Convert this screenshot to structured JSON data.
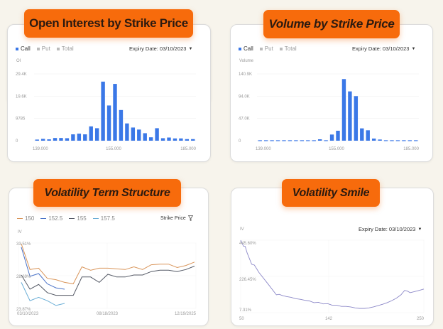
{
  "colors": {
    "background": "#f7f4ec",
    "pill": "#f76b0c",
    "bar": "#3b78e7",
    "series_150": "#d9955a",
    "series_152_5": "#4a73c8",
    "series_155": "#555a66",
    "series_157_5": "#6aaed6",
    "smile_line": "#8c88c8"
  },
  "panels": {
    "oi": {
      "title": "Open Interest by Strike Price",
      "legend": [
        "Call",
        "Put",
        "Total"
      ],
      "expiry_label": "Expiry Date: 03/10/2023",
      "y_axis_title": "OI"
    },
    "volume": {
      "title": "Volume by Strike Price",
      "legend": [
        "Call",
        "Put",
        "Total"
      ],
      "expiry_label": "Expiry Date: 03/10/2023",
      "y_axis_title": "Volume"
    },
    "term": {
      "title": "Volatility Term Structure",
      "legend": [
        "150",
        "152.5",
        "155",
        "157.5"
      ],
      "filter_label": "Strike Price",
      "y_axis_title": "IV"
    },
    "smile": {
      "title": "Volatility Smile",
      "expiry_label": "Expiry Date: 03/10/2023",
      "y_axis_title": "IV"
    }
  },
  "chart_data": [
    {
      "type": "bar",
      "title": "Open Interest by Strike Price",
      "ylabel": "OI",
      "x_ticks": [
        "139.000",
        "155.000",
        "185.000"
      ],
      "y_ticks": [
        "0",
        "9785",
        "19.6K",
        "29.4K"
      ],
      "ylim": [
        0,
        29400
      ],
      "series": [
        {
          "name": "Call",
          "values": [
            500,
            800,
            600,
            1200,
            1200,
            1100,
            2800,
            3100,
            2800,
            6300,
            5500,
            26000,
            15500,
            25000,
            13500,
            7600,
            5800,
            4900,
            3300,
            1500,
            5500,
            1100,
            1400,
            1000,
            1000,
            700,
            700
          ]
        }
      ]
    },
    {
      "type": "bar",
      "title": "Volume by Strike Price",
      "ylabel": "Volume",
      "x_ticks": [
        "139.000",
        "155.000",
        "185.000"
      ],
      "y_ticks": [
        "0",
        "47.0K",
        "94.0K",
        "140.9K"
      ],
      "ylim": [
        0,
        140900
      ],
      "series": [
        {
          "name": "Call",
          "values": [
            1000,
            1000,
            1000,
            1000,
            1000,
            1000,
            1000,
            1000,
            1000,
            1000,
            3000,
            1000,
            13000,
            21000,
            130000,
            104000,
            94000,
            26000,
            22000,
            4500,
            2500,
            1000,
            1000,
            1000,
            1000,
            1000,
            1000
          ]
        }
      ]
    },
    {
      "type": "line",
      "title": "Volatility Term Structure",
      "ylabel": "IV",
      "x_ticks": [
        "03/10/2023",
        "08/18/2023",
        "12/19/2025"
      ],
      "y_ticks": [
        "23.87%",
        "28.69%",
        "33.51%"
      ],
      "ylim": [
        23.87,
        33.51
      ],
      "legend_placement": "top-left",
      "series": [
        {
          "name": "150",
          "values": [
            33.4,
            29.6,
            29.8,
            28.3,
            28.1,
            27.7,
            27.5,
            30.0,
            29.5,
            29.8,
            29.8,
            29.7,
            29.6,
            30.0,
            29.6,
            30.3,
            30.4,
            30.4,
            29.9,
            30.2,
            30.7
          ]
        },
        {
          "name": "152.5",
          "values": [
            32.9,
            28.6,
            29.0,
            27.5,
            26.9,
            26.7
          ]
        },
        {
          "name": "155",
          "values": [
            28.8,
            26.7,
            27.4,
            26.2,
            25.8,
            25.8,
            25.8,
            28.5,
            28.5,
            27.7,
            28.9,
            28.5,
            28.5,
            28.8,
            28.8,
            29.3,
            29.5,
            29.5,
            29.3,
            29.6,
            30.1
          ]
        },
        {
          "name": "157.5",
          "values": [
            27.7,
            25.0,
            25.5,
            25.0,
            24.3,
            24.6
          ]
        }
      ]
    },
    {
      "type": "line",
      "title": "Volatility Smile",
      "ylabel": "IV",
      "x_ticks": [
        "50",
        "142",
        "250"
      ],
      "xlim": [
        50,
        250
      ],
      "y_ticks": [
        "7.31%",
        "226.45%",
        "445.60%"
      ],
      "ylim": [
        7.31,
        445.6
      ],
      "series": [
        {
          "name": "IV",
          "x": [
            50,
            53,
            55,
            57,
            62,
            65,
            70,
            80,
            89,
            92,
            96,
            100,
            105,
            110,
            115,
            120,
            125,
            130,
            135,
            140,
            145,
            150,
            155,
            160,
            165,
            170,
            175,
            180,
            185,
            190,
            195,
            200,
            205,
            210,
            215,
            220,
            225,
            229,
            232,
            235,
            240,
            245,
            250
          ],
          "values": [
            445,
            410,
            408,
            370,
            300,
            295,
            250,
            180,
            115,
            118,
            110,
            105,
            100,
            92,
            88,
            82,
            78,
            68,
            70,
            60,
            62,
            52,
            52,
            45,
            45,
            42,
            36,
            33,
            33,
            36,
            42,
            50,
            58,
            68,
            80,
            95,
            115,
            142,
            138,
            128,
            135,
            142,
            150
          ]
        }
      ]
    }
  ]
}
